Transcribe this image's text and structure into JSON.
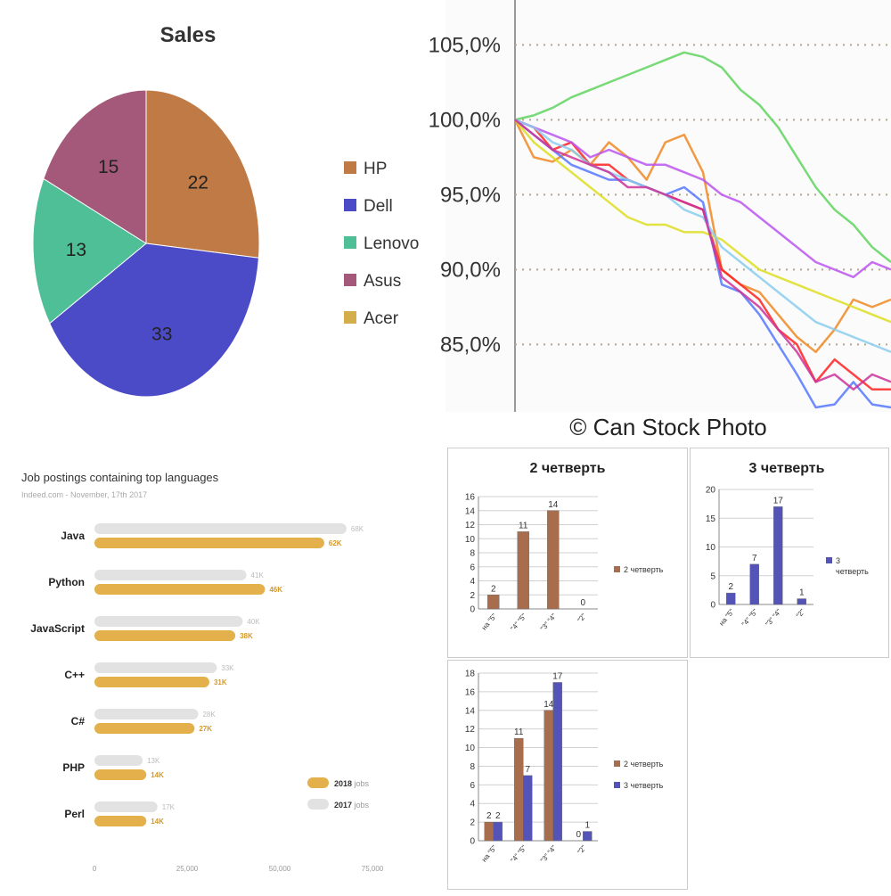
{
  "chart_data": [
    {
      "id": "sales",
      "type": "pie",
      "title": "Sales",
      "categories": [
        "HP",
        "Dell",
        "Lenovo",
        "Asus",
        "Acer"
      ],
      "values": [
        22,
        33,
        13,
        15,
        0
      ],
      "colors": [
        "#c07a45",
        "#4b4bc8",
        "#4fbf97",
        "#a4597a",
        "#d4ae4a"
      ],
      "legend": "right"
    },
    {
      "id": "stock",
      "type": "line",
      "ytick_labels": [
        "105,0%",
        "100,0%",
        "95,0%",
        "90,0%",
        "85,0%"
      ],
      "yticks": [
        105,
        100,
        95,
        90,
        85
      ],
      "ylim": [
        80.5,
        108
      ],
      "x": [
        0,
        1,
        2,
        3,
        4,
        5,
        6,
        7,
        8,
        9,
        10,
        11,
        12,
        13,
        14,
        15,
        16,
        17,
        18,
        19,
        20
      ],
      "series": [
        {
          "color": "#5fd35f",
          "values": [
            100,
            100.3,
            100.8,
            101.5,
            102,
            102.5,
            103,
            103.5,
            104,
            104.5,
            104.2,
            103.5,
            102,
            101,
            99.5,
            97.5,
            95.5,
            94,
            93,
            91.5,
            90.5
          ]
        },
        {
          "color": "#ee8822",
          "values": [
            100,
            97.5,
            97.2,
            98,
            97,
            98.5,
            97.5,
            96,
            98.5,
            99,
            96.5,
            90,
            89,
            88.5,
            87,
            85.5,
            84.5,
            86,
            88,
            87.5,
            88
          ]
        },
        {
          "color": "#ff2222",
          "values": [
            100,
            99.5,
            98,
            98.5,
            97,
            97,
            96,
            95.5,
            95,
            94.5,
            94,
            90,
            89,
            88,
            86,
            85,
            82.5,
            84,
            83,
            82,
            82
          ]
        },
        {
          "color": "#5577ff",
          "values": [
            100,
            99,
            98,
            97,
            96.5,
            96,
            96,
            95.5,
            95,
            95.5,
            94.5,
            89,
            88.5,
            87,
            85,
            83,
            80.8,
            81,
            82.5,
            81,
            80.8
          ]
        },
        {
          "color": "#bb55ee",
          "values": [
            100,
            99.5,
            99,
            98.5,
            97.5,
            98,
            97.5,
            97,
            97,
            96.5,
            96,
            95,
            94.5,
            93.5,
            92.5,
            91.5,
            90.5,
            90,
            89.5,
            90.5,
            90
          ]
        },
        {
          "color": "#dddd22",
          "values": [
            100,
            98.5,
            97.5,
            96.5,
            95.5,
            94.5,
            93.5,
            93,
            93,
            92.5,
            92.5,
            92,
            91,
            90,
            89.5,
            89,
            88.5,
            88,
            87.5,
            87,
            86.5
          ]
        },
        {
          "color": "#88ccee",
          "values": [
            100,
            99.5,
            98.5,
            98,
            97,
            96.5,
            96,
            95.5,
            95,
            94,
            93.5,
            91.5,
            90.5,
            89.5,
            88.5,
            87.5,
            86.5,
            86,
            85.5,
            85,
            84.5
          ]
        },
        {
          "color": "#cc3399",
          "values": [
            100,
            99,
            98,
            97.5,
            97,
            96.5,
            95.5,
            95.5,
            95,
            94.5,
            94,
            89.5,
            88.5,
            87.5,
            86,
            84.5,
            82.5,
            83,
            82,
            83,
            82.5
          ]
        }
      ]
    },
    {
      "id": "jobs",
      "type": "bar",
      "title": "Job postings containing top languages",
      "subtitle": "Indeed.com - November, 17th 2017",
      "categories": [
        "Java",
        "Python",
        "JavaScript",
        "C++",
        "C#",
        "PHP",
        "Perl"
      ],
      "series": [
        {
          "name": "2017",
          "color": "#e2e2e2",
          "values": [
            68000,
            41000,
            40000,
            33000,
            28000,
            13000,
            17000
          ],
          "labels": [
            "68K",
            "41K",
            "40K",
            "33K",
            "28K",
            "13K",
            "17K"
          ]
        },
        {
          "name": "2018",
          "color": "#e3b04b",
          "values": [
            62000,
            46000,
            38000,
            31000,
            27000,
            14000,
            14000
          ],
          "labels": [
            "62K",
            "46K",
            "38K",
            "31K",
            "27K",
            "14K",
            "14K"
          ]
        }
      ],
      "xticks": [
        0,
        25000,
        50000,
        75000
      ],
      "xtick_labels": [
        "0",
        "25,000",
        "50,000",
        "75,000"
      ],
      "xlim": [
        0,
        75000
      ],
      "legend_entries": [
        {
          "bold": "2018",
          "rest": " jobs",
          "color": "#e3b04b"
        },
        {
          "bold": "2017",
          "rest": " jobs",
          "color": "#e2e2e2"
        }
      ],
      "legend": "bottom-right"
    },
    {
      "id": "q2",
      "type": "bar",
      "title": "2 четверть",
      "categories": [
        "на \"5\"",
        "\"4\" \"5\"",
        "\"3\" \"4\"",
        "\"2\""
      ],
      "series": [
        {
          "name": "2 четверть",
          "color": "#a86d4d",
          "values": [
            2,
            11,
            14,
            0
          ]
        }
      ],
      "yticks": [
        0,
        2,
        4,
        6,
        8,
        10,
        12,
        14,
        16
      ],
      "ylim": [
        0,
        16
      ],
      "legend": "right"
    },
    {
      "id": "q3",
      "type": "bar",
      "title": "3 четверть",
      "categories": [
        "на \"5\"",
        "\"4\" \"5\"",
        "\"3\" \"4\"",
        "\"2\""
      ],
      "series": [
        {
          "name": "3 четверть",
          "color": "#5454b8",
          "values": [
            2,
            7,
            17,
            1
          ]
        }
      ],
      "yticks": [
        0,
        5,
        10,
        15,
        20
      ],
      "ylim": [
        0,
        20
      ],
      "legend": "right"
    },
    {
      "id": "combo",
      "type": "bar",
      "title": "",
      "categories": [
        "на \"5\"",
        "\"4\" \"5\"",
        "\"3\" \"4\"",
        "\"2\""
      ],
      "series": [
        {
          "name": "2 четверть",
          "color": "#a86d4d",
          "values": [
            2,
            11,
            14,
            0
          ]
        },
        {
          "name": "3 четверть",
          "color": "#5454b8",
          "values": [
            2,
            7,
            17,
            1
          ]
        }
      ],
      "yticks": [
        0,
        2,
        4,
        6,
        8,
        10,
        12,
        14,
        16,
        18
      ],
      "ylim": [
        0,
        18
      ],
      "legend": "right"
    }
  ],
  "caption": "© Can Stock Photo"
}
